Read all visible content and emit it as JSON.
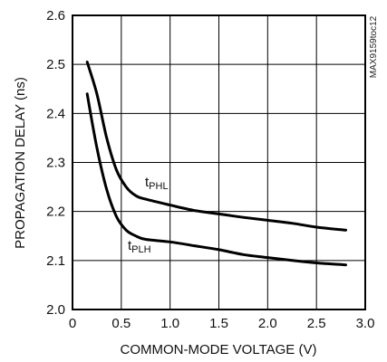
{
  "chart_data": {
    "type": "line",
    "title": "",
    "xlabel": "COMMON-MODE VOLTAGE (V)",
    "ylabel": "PROPAGATION DELAY (ns)",
    "xlim": [
      0,
      3.0
    ],
    "ylim": [
      2.0,
      2.6
    ],
    "xticks": [
      "0",
      "0.5",
      "1.0",
      "1.5",
      "2.0",
      "2.5",
      "3.0"
    ],
    "yticks": [
      "2.0",
      "2.1",
      "2.2",
      "2.3",
      "2.4",
      "2.5",
      "2.6"
    ],
    "grid": true,
    "watermark": "MAX9159toc12",
    "series": [
      {
        "name": "tPHL",
        "label_main": "t",
        "label_sub": "PHL",
        "color": "#000000",
        "points": [
          [
            0.15,
            2.505
          ],
          [
            0.25,
            2.44
          ],
          [
            0.35,
            2.35
          ],
          [
            0.45,
            2.285
          ],
          [
            0.55,
            2.25
          ],
          [
            0.65,
            2.232
          ],
          [
            0.75,
            2.225
          ],
          [
            1.0,
            2.213
          ],
          [
            1.25,
            2.202
          ],
          [
            1.5,
            2.195
          ],
          [
            1.75,
            2.188
          ],
          [
            2.0,
            2.182
          ],
          [
            2.25,
            2.176
          ],
          [
            2.5,
            2.168
          ],
          [
            2.8,
            2.162
          ]
        ]
      },
      {
        "name": "tPLH",
        "label_main": "t",
        "label_sub": "PLH",
        "color": "#000000",
        "points": [
          [
            0.15,
            2.44
          ],
          [
            0.25,
            2.33
          ],
          [
            0.35,
            2.245
          ],
          [
            0.45,
            2.19
          ],
          [
            0.55,
            2.162
          ],
          [
            0.65,
            2.15
          ],
          [
            0.75,
            2.143
          ],
          [
            1.0,
            2.138
          ],
          [
            1.25,
            2.13
          ],
          [
            1.5,
            2.122
          ],
          [
            1.75,
            2.112
          ],
          [
            2.0,
            2.106
          ],
          [
            2.25,
            2.1
          ],
          [
            2.5,
            2.095
          ],
          [
            2.8,
            2.091
          ]
        ]
      }
    ]
  }
}
